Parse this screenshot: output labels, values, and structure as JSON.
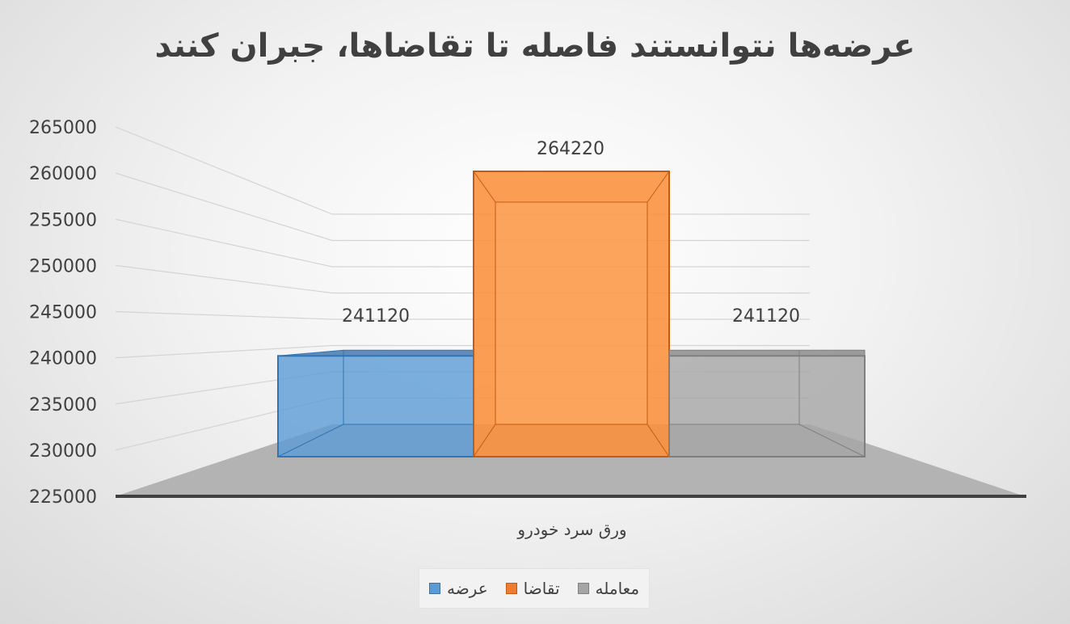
{
  "chart_data": {
    "type": "bar",
    "title": "عرضه‌ها نتوانستند فاصله تا تقاضاها، جبران کنند",
    "categories": [
      "ورق سرد خودرو"
    ],
    "series": [
      {
        "name": "عرضه",
        "values": [
          241120
        ],
        "color": "#5b9bd5"
      },
      {
        "name": "تقاضا",
        "values": [
          264220
        ],
        "color": "#ed7d31"
      },
      {
        "name": "معامله",
        "values": [
          241120
        ],
        "color": "#a5a5a5"
      }
    ],
    "y_ticks": [
      "265000",
      "260000",
      "255000",
      "250000",
      "245000",
      "240000",
      "235000",
      "230000",
      "225000"
    ],
    "ylim": [
      225000,
      265000
    ],
    "data_labels": [
      "241120",
      "264220",
      "241120"
    ],
    "grid": true,
    "legend": "bottom"
  }
}
